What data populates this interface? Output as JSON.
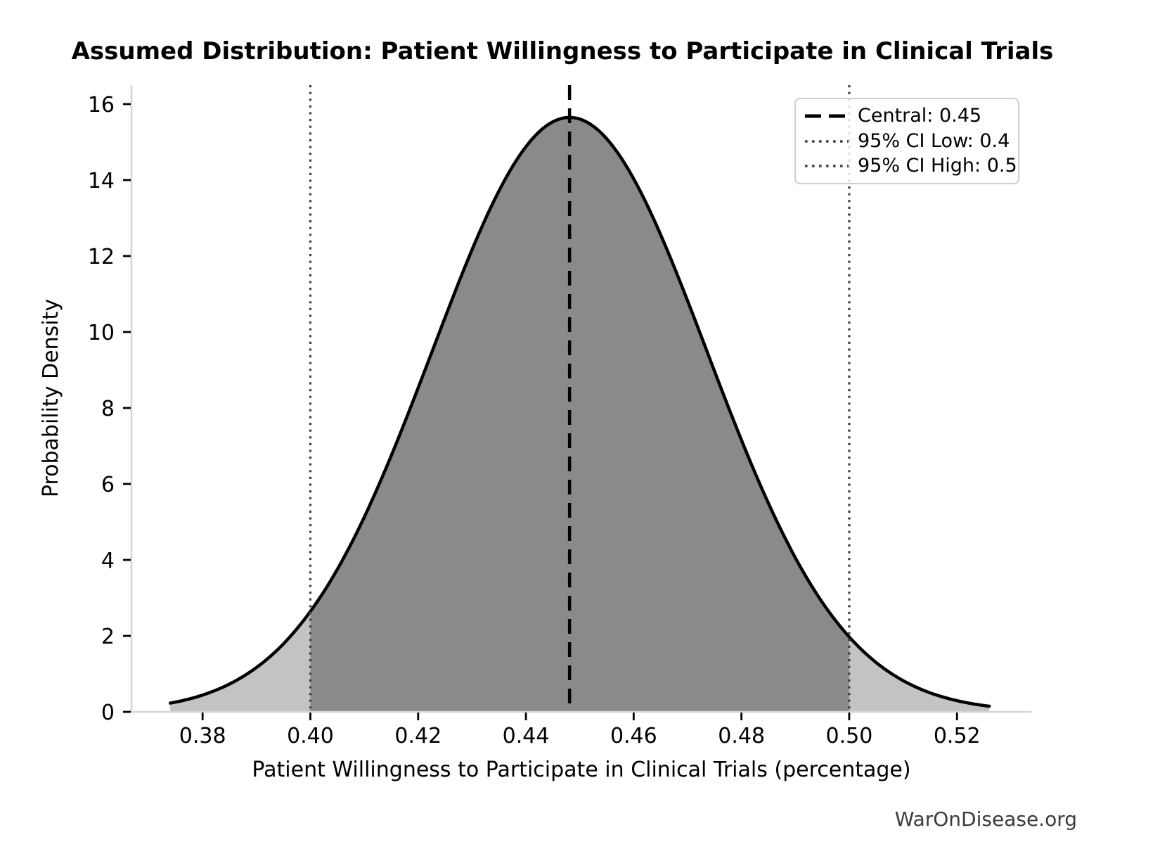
{
  "chart_data": {
    "type": "area",
    "title": "Assumed Distribution: Patient Willingness to Participate in Clinical Trials",
    "xlabel": "Patient Willingness to Participate in Clinical Trials (percentage)",
    "ylabel": "Probability Density",
    "watermark": "WarOnDisease.org",
    "x_ticks": [
      0.38,
      0.4,
      0.42,
      0.44,
      0.46,
      0.48,
      0.5,
      0.52
    ],
    "x_tick_labels": [
      "0.38",
      "0.40",
      "0.42",
      "0.44",
      "0.46",
      "0.48",
      "0.50",
      "0.52"
    ],
    "y_ticks": [
      0,
      2,
      4,
      6,
      8,
      10,
      12,
      14,
      16
    ],
    "xlim": [
      0.3668,
      0.5338
    ],
    "ylim": [
      0,
      16.5
    ],
    "grid": false,
    "legend_position": "upper right",
    "distribution": {
      "shape": "normal",
      "peak_x": 0.4481,
      "peak_density": 15.65,
      "sd": 0.0255,
      "x_range": [
        0.374,
        0.526
      ]
    },
    "central_line": {
      "value": 0.45,
      "x": 0.4481,
      "style": "dashed",
      "color": "#000000"
    },
    "ci_low_line": {
      "value": 0.4,
      "x": 0.4,
      "style": "dotted",
      "color": "#404040"
    },
    "ci_high_line": {
      "value": 0.5,
      "x": 0.5,
      "style": "dotted",
      "color": "#404040"
    },
    "shaded_ci_region": [
      0.4,
      0.5
    ],
    "legend": {
      "items": [
        {
          "label": "Central: 0.45",
          "style": "dashed",
          "color": "#000000"
        },
        {
          "label": "95% CI Low: 0.4",
          "style": "dotted",
          "color": "#404040"
        },
        {
          "label": "95% CI High: 0.5",
          "style": "dotted",
          "color": "#404040"
        }
      ]
    },
    "colors": {
      "curve": "#000000",
      "fill_tails": "#c3c3c3",
      "fill_ci": "#8a8a8a",
      "spine": "#d4d4d4",
      "tick": "#000000",
      "text": "#000000",
      "watermark": "#3b3b3b"
    }
  }
}
